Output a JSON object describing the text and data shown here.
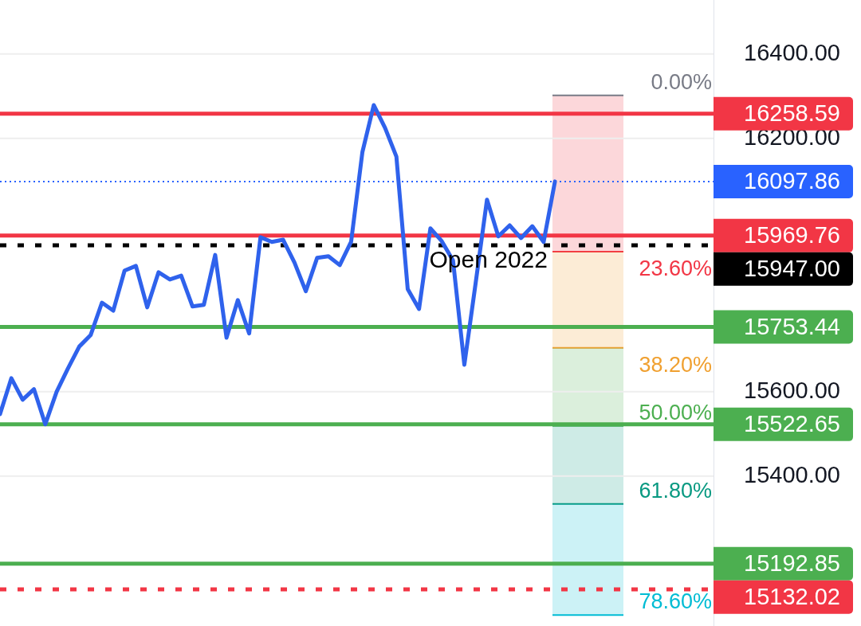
{
  "chart_data": {
    "type": "line",
    "categories": [
      null,
      null,
      null,
      null,
      null,
      null,
      null,
      null,
      null,
      null,
      null,
      null,
      null,
      null,
      null,
      null,
      null,
      null,
      null,
      null,
      null,
      null,
      null,
      null,
      null,
      null,
      null,
      null,
      null,
      null,
      null,
      null,
      null,
      null,
      null,
      null,
      null,
      null,
      null,
      null,
      null,
      null,
      null,
      null,
      null,
      null,
      null,
      null,
      null,
      null,
      null,
      null,
      null,
      null,
      null,
      null,
      null,
      null,
      null,
      null,
      null,
      null,
      null,
      null
    ],
    "series": [
      {
        "color": "#2f62ec",
        "values": [
          15547,
          15632,
          15581,
          15606,
          15523,
          15600,
          15655,
          15707,
          15734,
          15811,
          15792,
          15887,
          15898,
          15800,
          15883,
          15866,
          15875,
          15802,
          15806,
          15924,
          15728,
          15817,
          15738,
          15966,
          15955,
          15960,
          15906,
          15838,
          15917,
          15921,
          15900,
          15955,
          16168,
          16279,
          16225,
          16157,
          15843,
          15796,
          15987,
          15957,
          15911,
          15664,
          15858,
          16055,
          15968,
          15994,
          15964,
          15992,
          15955,
          16098,
          null,
          null,
          null,
          null,
          null,
          null,
          null,
          null,
          null,
          null,
          null,
          null,
          null,
          null
        ]
      }
    ],
    "ylim": [
      15045,
      16528
    ],
    "yticks": [
      {
        "value": 15400,
        "label": "15400.00"
      },
      {
        "value": 15600,
        "label": "15600.00"
      },
      {
        "value": 16200,
        "label": "16200.00"
      },
      {
        "value": 16400,
        "label": "16400.00"
      }
    ],
    "grid": "y",
    "tick_labels": "y",
    "legend": false,
    "marker": "none",
    "line_style": "solid",
    "bands": [
      {
        "axis": "y",
        "from": 15932,
        "to": 16302,
        "label": "23.60%",
        "color": "#f23645"
      },
      {
        "axis": "y",
        "from": 15704,
        "to": 15932,
        "label": "38.20%",
        "color": "#f0a030"
      },
      {
        "axis": "y",
        "from": 15519,
        "to": 15704,
        "label": "50.00%",
        "color": "#4caf50"
      },
      {
        "axis": "y",
        "from": 15334,
        "to": 15519,
        "label": "61.80%",
        "color": "#089981"
      },
      {
        "axis": "y",
        "from": 15071,
        "to": 15334,
        "label": "78.60%",
        "color": "#00bcd4"
      }
    ],
    "ref_lines": [
      {
        "axis": "y",
        "value": 16258.59,
        "label": "16258.59",
        "color": "#f23645",
        "line_style": "solid"
      },
      {
        "axis": "y",
        "value": 16097.86,
        "label": "16097.86",
        "color": "#2962ff",
        "line_style": "dotted"
      },
      {
        "axis": "y",
        "value": 15969.76,
        "label": "15969.76",
        "color": "#f23645",
        "line_style": "solid"
      },
      {
        "axis": "y",
        "value": 15947,
        "label": "15947.00",
        "color": "#000000",
        "line_style": "dotted"
      },
      {
        "axis": "y",
        "value": 15753.44,
        "label": "15753.44",
        "color": "#4caf50",
        "line_style": "solid"
      },
      {
        "axis": "y",
        "value": 15522.65,
        "label": "15522.65",
        "color": "#4caf50",
        "line_style": "solid"
      },
      {
        "axis": "y",
        "value": 15192.85,
        "label": "15192.85",
        "color": "#4caf50",
        "line_style": "solid"
      },
      {
        "axis": "y",
        "value": 15132.02,
        "label": "15132.02",
        "color": "#f23645",
        "line_style": "dotted"
      }
    ],
    "annotations": [
      "0.00%",
      {
        "text": "Open 2022",
        "y": 15947
      }
    ]
  }
}
